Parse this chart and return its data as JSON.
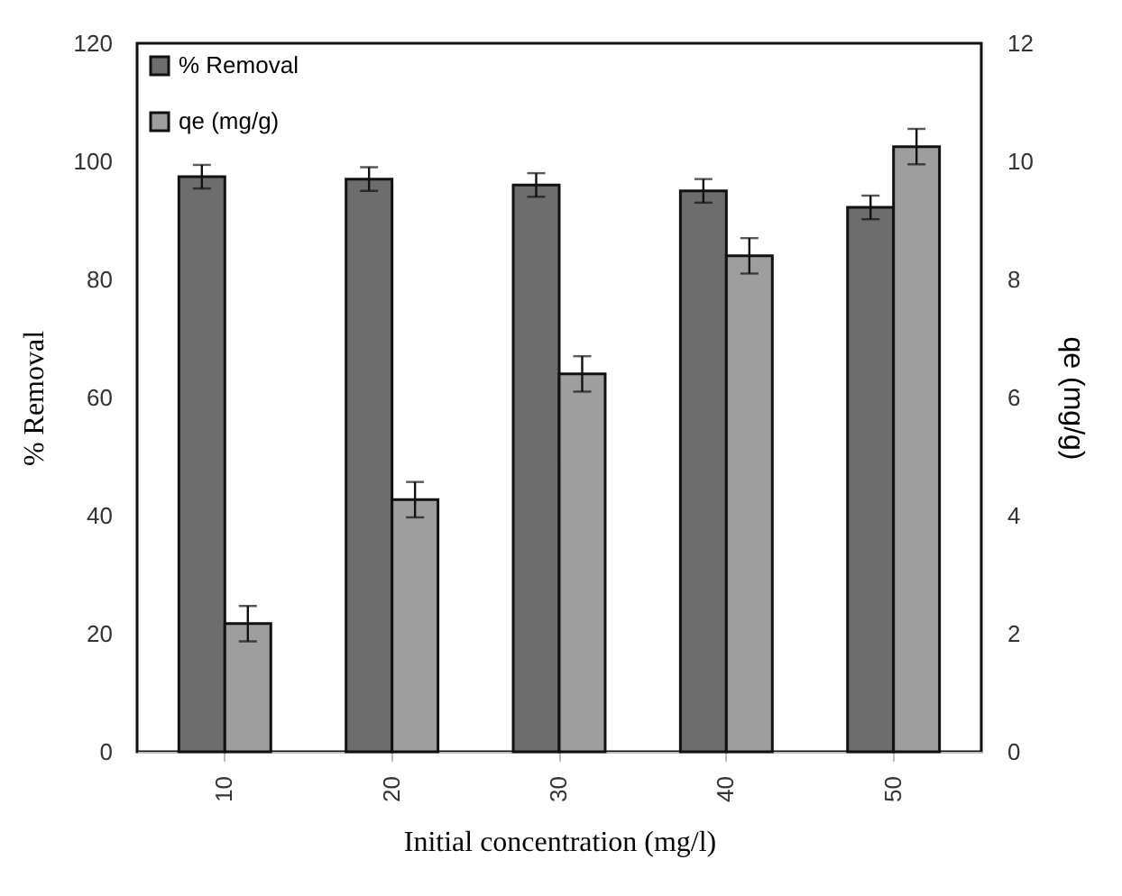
{
  "chart_data": {
    "type": "bar",
    "xlabel": "Initial concentration (mg/l)",
    "ylabel": "% Removal",
    "y2label": "qe (mg/g)",
    "categories": [
      "10",
      "20",
      "30",
      "40",
      "50"
    ],
    "series": [
      {
        "name": "% Removal",
        "color": "#6d6d6d",
        "values": [
          97.4,
          97,
          96,
          95,
          92.2
        ],
        "errors": [
          2,
          2,
          2,
          2,
          2
        ]
      },
      {
        "name": "qe (mg/g)",
        "color": "#9e9e9e",
        "axis": "y2",
        "values": [
          2.17,
          4.27,
          6.4,
          8.4,
          10.25
        ],
        "errors": [
          0.3,
          0.3,
          0.3,
          0.3,
          0.3
        ]
      }
    ],
    "ylim": [
      0,
      120
    ],
    "yticks": [
      0,
      20,
      40,
      60,
      80,
      100,
      120
    ],
    "y2lim": [
      0,
      12
    ],
    "y2ticks": [
      0,
      2,
      4,
      6,
      8,
      10,
      12
    ],
    "legend": "top left"
  }
}
